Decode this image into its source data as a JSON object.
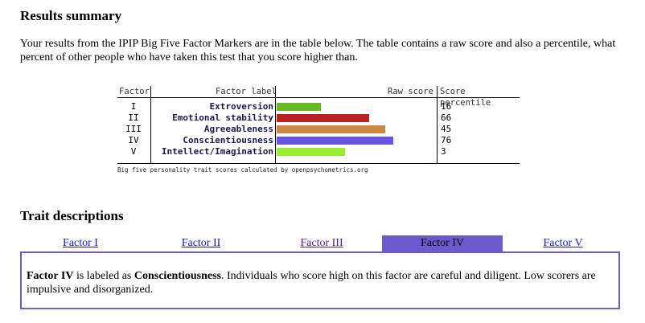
{
  "results": {
    "heading": "Results summary",
    "intro": "Your results from the IPIP Big Five Factor Markers are in the table below. The table contains a raw score and also a percentile, what percent of other people who have taken this test that you score higher than."
  },
  "chart_data": {
    "type": "table",
    "columns": [
      "Factor",
      "Factor label",
      "Raw score",
      "Score percentile"
    ],
    "rows": [
      {
        "factor": "I",
        "label": "Extroversion",
        "raw_score_fraction": 0.28,
        "percentile": "16",
        "color": "#66bb22"
      },
      {
        "factor": "II",
        "label": "Emotional stability",
        "raw_score_fraction": 0.58,
        "percentile": "66",
        "color": "#bb2222"
      },
      {
        "factor": "III",
        "label": "Agreeableness",
        "raw_score_fraction": 0.68,
        "percentile": "45",
        "color": "#cc8844"
      },
      {
        "factor": "IV",
        "label": "Conscientiousness",
        "raw_score_fraction": 0.73,
        "percentile": "76",
        "color": "#6655dd"
      },
      {
        "factor": "V",
        "label": "Intellect/Imagination",
        "raw_score_fraction": 0.43,
        "percentile": "3",
        "color": "#99ee33"
      }
    ],
    "caption": "Big five personality trait scores calculated by openpsychometrics.org"
  },
  "traits": {
    "heading": "Trait descriptions",
    "tabs": [
      {
        "label": "Factor I",
        "state": "link"
      },
      {
        "label": "Factor II",
        "state": "link"
      },
      {
        "label": "Factor III",
        "state": "visited"
      },
      {
        "label": "Factor IV",
        "state": "active"
      },
      {
        "label": "Factor V",
        "state": "link"
      }
    ],
    "panel": {
      "factor": "Factor IV",
      "is_labeled_as": " is labeled as ",
      "trait": "Conscientiousness",
      "description": ". Individuals who score high on this factor are careful and diligent. Low scorers are impulsive and disorganized."
    },
    "accent_color": "#6a5acd"
  }
}
